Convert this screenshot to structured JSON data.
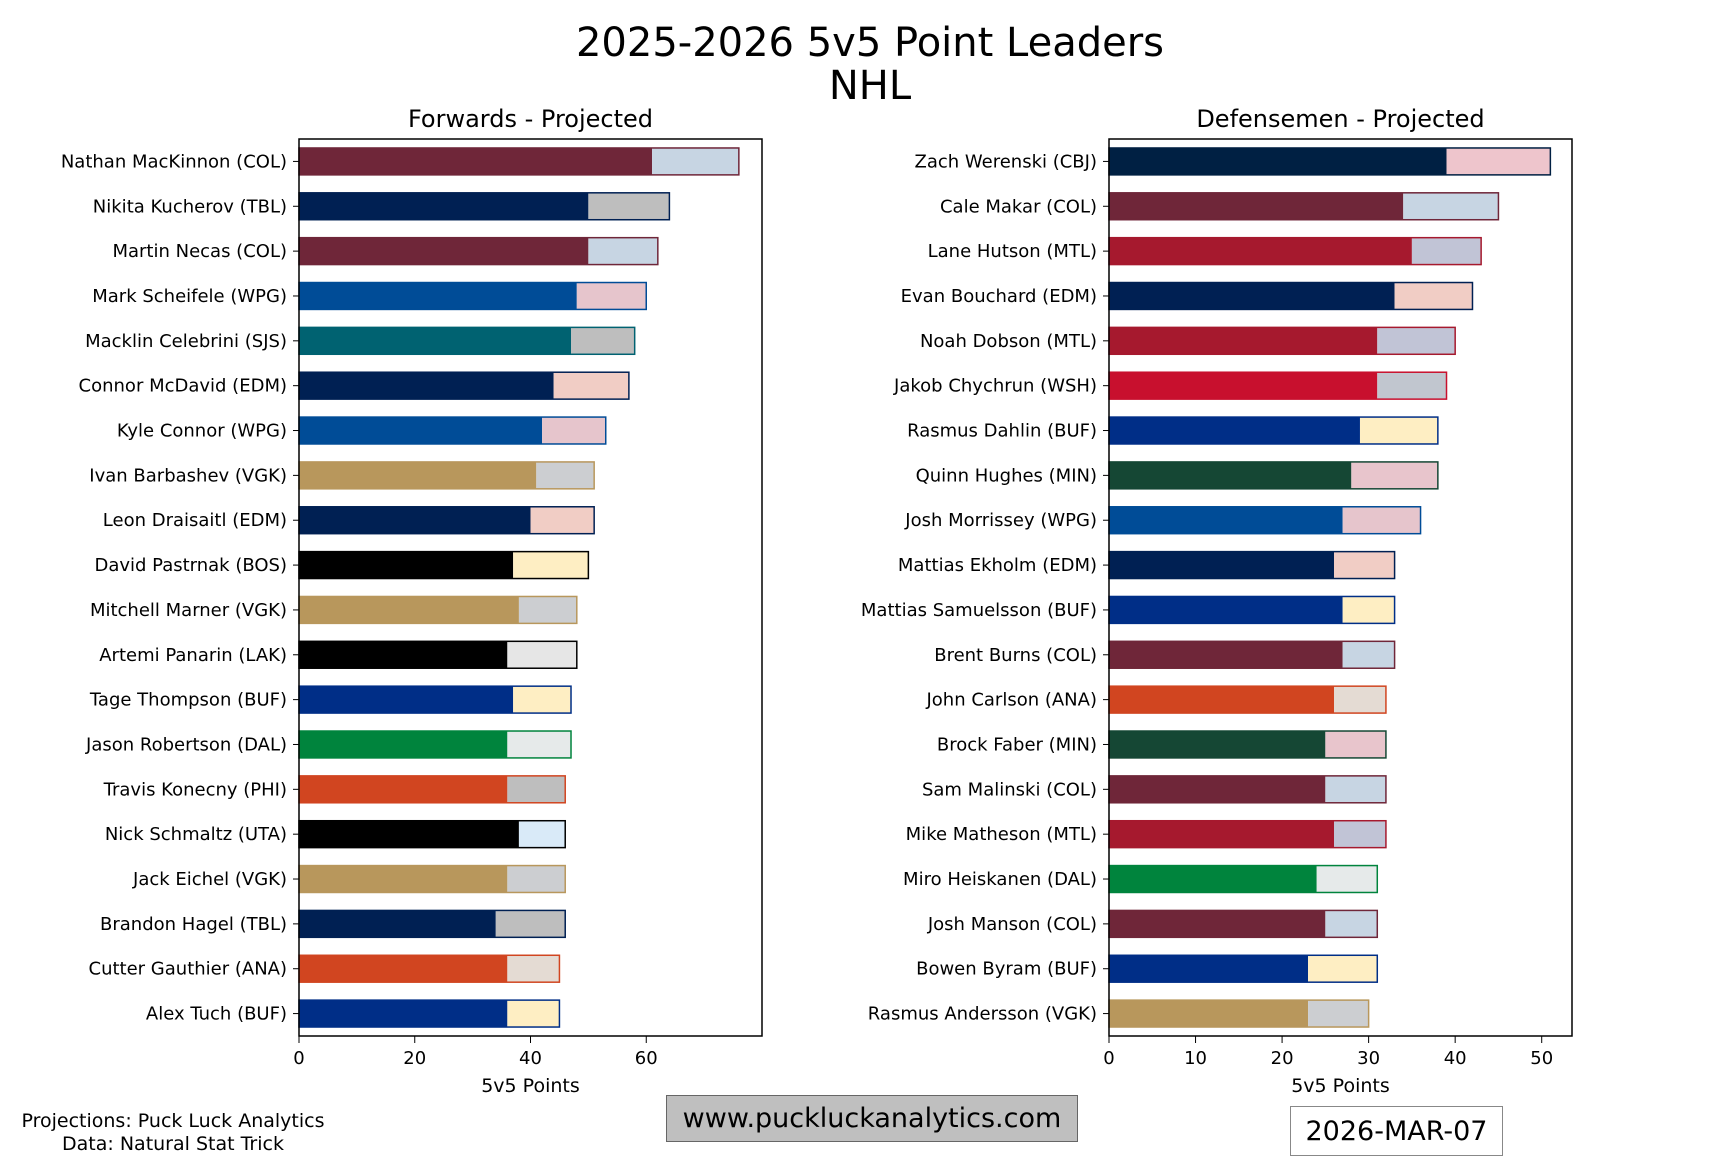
{
  "header": {
    "title": "2025-2026 5v5 Point Leaders",
    "league": "NHL"
  },
  "footer": {
    "credits_line1": "Projections: Puck Luck Analytics",
    "credits_line2": "Data: Natural Stat Trick",
    "website": "www.puckluckanalytics.com",
    "date": "2026-MAR-07"
  },
  "chart_data": [
    {
      "type": "bar",
      "orientation": "horizontal",
      "stacked": true,
      "title": "Forwards - Projected",
      "xlabel": "5v5 Points",
      "xlim": [
        0,
        80
      ],
      "xticks": [
        0,
        20,
        40,
        60
      ],
      "grid": false,
      "series": [
        {
          "values": [
            61,
            50,
            50,
            48,
            47,
            44,
            42,
            41,
            40,
            37,
            38,
            36,
            37,
            36,
            36,
            38,
            36,
            34,
            36,
            36
          ]
        },
        {
          "values": [
            15,
            14,
            12,
            12,
            11,
            13,
            11,
            10,
            11,
            13,
            10,
            12,
            10,
            11,
            10,
            8,
            10,
            12,
            9,
            9
          ]
        }
      ],
      "categories": [
        "Nathan MacKinnon (COL)",
        "Nikita Kucherov (TBL)",
        "Martin Necas (COL)",
        "Mark Scheifele (WPG)",
        "Macklin Celebrini (SJS)",
        "Connor McDavid (EDM)",
        "Kyle Connor (WPG)",
        "Ivan Barbashev (VGK)",
        "Leon Draisaitl (EDM)",
        "David Pastrnak (BOS)",
        "Mitchell Marner (VGK)",
        "Artemi Panarin (LAK)",
        "Tage Thompson (BUF)",
        "Jason Robertson (DAL)",
        "Travis Konecny (PHI)",
        "Nick Schmaltz (UTA)",
        "Jack Eichel (VGK)",
        "Brandon Hagel (TBL)",
        "Cutter Gauthier (ANA)",
        "Alex Tuch (BUF)"
      ],
      "colors": [
        {
          "main": "#6f2639",
          "light": "#c7d5e3",
          "edge": "#6f2639"
        },
        {
          "main": "#002053",
          "light": "#bebebe",
          "edge": "#002053"
        },
        {
          "main": "#6f2639",
          "light": "#c7d5e3",
          "edge": "#6f2639"
        },
        {
          "main": "#004c97",
          "light": "#e6c5cc",
          "edge": "#004c97"
        },
        {
          "main": "#006271",
          "light": "#bebebe",
          "edge": "#006271"
        },
        {
          "main": "#002053",
          "light": "#f1cdc5",
          "edge": "#002053"
        },
        {
          "main": "#004c97",
          "light": "#e6c5cc",
          "edge": "#004c97"
        },
        {
          "main": "#b8975c",
          "light": "#ccced1",
          "edge": "#b8975c"
        },
        {
          "main": "#002053",
          "light": "#f1cdc5",
          "edge": "#002053"
        },
        {
          "main": "#000000",
          "light": "#feeec3",
          "edge": "#000000"
        },
        {
          "main": "#b8975c",
          "light": "#ccced1",
          "edge": "#b8975c"
        },
        {
          "main": "#000000",
          "light": "#e6e6e6",
          "edge": "#000000"
        },
        {
          "main": "#002e87",
          "light": "#feeec3",
          "edge": "#002e87"
        },
        {
          "main": "#00843d",
          "light": "#e6eaea",
          "edge": "#00843d"
        },
        {
          "main": "#d14520",
          "light": "#bebebe",
          "edge": "#d14520"
        },
        {
          "main": "#000000",
          "light": "#d9eaf8",
          "edge": "#000000"
        },
        {
          "main": "#b8975c",
          "light": "#ccced1",
          "edge": "#b8975c"
        },
        {
          "main": "#002053",
          "light": "#bebebe",
          "edge": "#002053"
        },
        {
          "main": "#d14520",
          "light": "#e4dbd3",
          "edge": "#d14520"
        },
        {
          "main": "#002e87",
          "light": "#feeec3",
          "edge": "#002e87"
        }
      ]
    },
    {
      "type": "bar",
      "orientation": "horizontal",
      "stacked": true,
      "title": "Defensemen - Projected",
      "xlabel": "5v5 Points",
      "xlim": [
        0,
        53.5
      ],
      "xticks": [
        0,
        10,
        20,
        30,
        40,
        50
      ],
      "grid": false,
      "series": [
        {
          "values": [
            39,
            34,
            35,
            33,
            31,
            31,
            29,
            28,
            27,
            26,
            27,
            27,
            26,
            25,
            25,
            26,
            24,
            25,
            23,
            23
          ]
        },
        {
          "values": [
            12,
            11,
            8,
            9,
            9,
            8,
            9,
            10,
            9,
            7,
            6,
            6,
            6,
            7,
            7,
            6,
            7,
            6,
            8,
            7
          ]
        }
      ],
      "categories": [
        "Zach Werenski (CBJ)",
        "Cale Makar (COL)",
        "Lane Hutson (MTL)",
        "Evan Bouchard (EDM)",
        "Noah Dobson (MTL)",
        "Jakob Chychrun (WSH)",
        "Rasmus Dahlin (BUF)",
        "Quinn Hughes (MIN)",
        "Josh Morrissey (WPG)",
        "Mattias Ekholm (EDM)",
        "Mattias Samuelsson (BUF)",
        "Brent Burns (COL)",
        "John Carlson (ANA)",
        "Brock Faber (MIN)",
        "Sam Malinski (COL)",
        "Mike Matheson (MTL)",
        "Miro Heiskanen (DAL)",
        "Josh Manson (COL)",
        "Bowen Byram (BUF)",
        "Rasmus Andersson (VGK)"
      ],
      "colors": [
        {
          "main": "#002043",
          "light": "#eec5cc",
          "edge": "#002043"
        },
        {
          "main": "#6f2639",
          "light": "#c7d5e3",
          "edge": "#6f2639"
        },
        {
          "main": "#a6192e",
          "light": "#c1c4d6",
          "edge": "#a6192e"
        },
        {
          "main": "#002053",
          "light": "#f1cdc5",
          "edge": "#002053"
        },
        {
          "main": "#a6192e",
          "light": "#c1c4d6",
          "edge": "#a6192e"
        },
        {
          "main": "#c8102e",
          "light": "#c1c6cf",
          "edge": "#c8102e"
        },
        {
          "main": "#002e87",
          "light": "#feeec3",
          "edge": "#002e87"
        },
        {
          "main": "#154734",
          "light": "#e8c5cc",
          "edge": "#154734"
        },
        {
          "main": "#004c97",
          "light": "#e6c5cc",
          "edge": "#004c97"
        },
        {
          "main": "#002053",
          "light": "#f1cdc5",
          "edge": "#002053"
        },
        {
          "main": "#002e87",
          "light": "#feeec3",
          "edge": "#002e87"
        },
        {
          "main": "#6f2639",
          "light": "#c7d5e3",
          "edge": "#6f2639"
        },
        {
          "main": "#d14520",
          "light": "#e4dbd3",
          "edge": "#d14520"
        },
        {
          "main": "#154734",
          "light": "#e8c5cc",
          "edge": "#154734"
        },
        {
          "main": "#6f2639",
          "light": "#c7d5e3",
          "edge": "#6f2639"
        },
        {
          "main": "#a6192e",
          "light": "#c1c4d6",
          "edge": "#a6192e"
        },
        {
          "main": "#00843d",
          "light": "#e6eaea",
          "edge": "#00843d"
        },
        {
          "main": "#6f2639",
          "light": "#c7d5e3",
          "edge": "#6f2639"
        },
        {
          "main": "#002e87",
          "light": "#feeec3",
          "edge": "#002e87"
        },
        {
          "main": "#b8975c",
          "light": "#ccced1",
          "edge": "#b8975c"
        }
      ]
    }
  ]
}
